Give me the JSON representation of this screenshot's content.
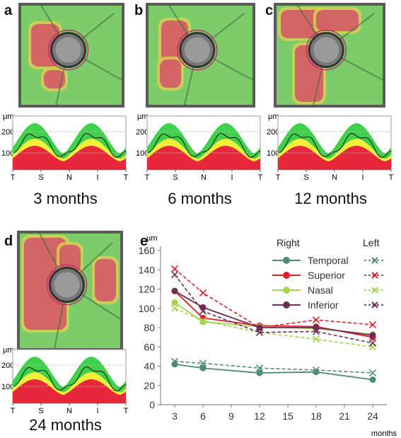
{
  "panels": [
    {
      "letter": "a",
      "caption": "3 months"
    },
    {
      "letter": "b",
      "caption": "6 months"
    },
    {
      "letter": "c",
      "caption": "12 months"
    },
    {
      "letter": "d",
      "caption": "24 months"
    },
    {
      "letter": "e"
    }
  ],
  "mini_graph": {
    "unit": "μm",
    "y_ticks": [
      "200",
      "100"
    ],
    "x_ticks": [
      "T",
      "S",
      "N",
      "I",
      "T"
    ]
  },
  "chart_data": {
    "type": "line",
    "ylabel": "μm",
    "xlabel": "months",
    "x": [
      3,
      6,
      12,
      18,
      24
    ],
    "x_ticks": [
      3,
      6,
      9,
      12,
      15,
      18,
      21,
      24
    ],
    "y_ticks": [
      0,
      20,
      40,
      60,
      80,
      100,
      120,
      140,
      160
    ],
    "xlim": [
      1.5,
      25.5
    ],
    "ylim": [
      0,
      160
    ],
    "legend": {
      "right_header": "Right",
      "left_header": "Left",
      "placement": "top-right"
    },
    "series": [
      {
        "name": "Temporal",
        "color": "#4e8a78",
        "right": [
          42,
          38,
          33,
          34,
          26
        ],
        "left": [
          45,
          43,
          38,
          36,
          33
        ]
      },
      {
        "name": "Superior",
        "color": "#e3202a",
        "right": [
          118,
          90,
          82,
          81,
          70
        ],
        "left": [
          141,
          116,
          80,
          88,
          83
        ]
      },
      {
        "name": "Nasal",
        "color": "#a6d44c",
        "right": [
          106,
          86,
          81,
          79,
          73
        ],
        "left": [
          100,
          87,
          75,
          68,
          60
        ]
      },
      {
        "name": "Inferior",
        "color": "#6e2c58",
        "right": [
          118,
          101,
          80,
          80,
          72
        ],
        "left": [
          135,
          97,
          75,
          76,
          64
        ]
      }
    ]
  }
}
